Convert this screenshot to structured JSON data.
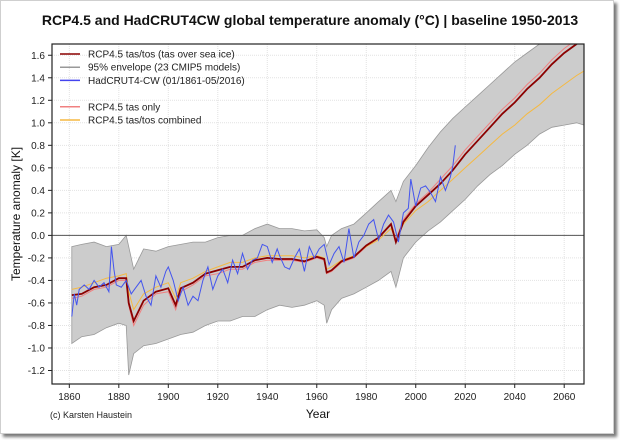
{
  "chart_data": {
    "type": "line",
    "title": "RCP4.5 and HadCRUT4CW global temperature anomaly (°C) | baseline 1950-2013",
    "xlabel": "Year",
    "ylabel": "Temperature anomaly [K]",
    "credit": "(c) Karsten Haustein",
    "xlim": [
      1853,
      2068
    ],
    "ylim": [
      -1.32,
      1.7
    ],
    "xticks": [
      1860,
      1880,
      1900,
      1920,
      1940,
      1960,
      1980,
      2000,
      2020,
      2040,
      2060
    ],
    "yticks": [
      -1.2,
      -1.0,
      -0.8,
      -0.6,
      -0.4,
      -0.2,
      0.0,
      0.2,
      0.4,
      0.6,
      0.8,
      1.0,
      1.2,
      1.4,
      1.6
    ],
    "ytick_labels": [
      "-1.2",
      "-1.0",
      "-0.8",
      "-0.6",
      "-0.4",
      "-0.2",
      "0.0",
      "0.2",
      "0.4",
      "0.6",
      "0.8",
      "1.0",
      "1.2",
      "1.4",
      "1.6"
    ],
    "grid": true,
    "zero_line": 0.0,
    "legend_position": "top-left",
    "legend": [
      {
        "label": "RCP4.5 tas/tos (tas over sea ice)",
        "color": "#8b0000"
      },
      {
        "label": "95% envelope (23 CMIP5 models)",
        "color": "#999999"
      },
      {
        "label": "HadCRUT4-CW (01/1861-05/2016)",
        "color": "#4444ee"
      },
      {
        "label": "",
        "color": ""
      },
      {
        "label": "RCP4.5 tas only",
        "color": "#f08080"
      },
      {
        "label": "RCP4.5 tas/tos combined",
        "color": "#f5b942"
      }
    ],
    "envelope": {
      "name": "95% envelope (23 CMIP5 models)",
      "color": "#cccccc",
      "x": [
        1861,
        1865,
        1870,
        1875,
        1880,
        1883,
        1884,
        1886,
        1890,
        1895,
        1900,
        1905,
        1910,
        1915,
        1920,
        1925,
        1930,
        1935,
        1940,
        1945,
        1950,
        1955,
        1960,
        1963,
        1964,
        1966,
        1970,
        1975,
        1980,
        1985,
        1990,
        1992,
        1995,
        2000,
        2005,
        2010,
        2015,
        2020,
        2025,
        2030,
        2035,
        2040,
        2045,
        2050,
        2055,
        2060,
        2065,
        2068
      ],
      "upper": [
        -0.1,
        -0.08,
        -0.06,
        -0.1,
        -0.08,
        0.0,
        -0.1,
        -0.3,
        -0.12,
        -0.14,
        -0.1,
        -0.08,
        -0.06,
        -0.06,
        -0.02,
        0.0,
        0.0,
        0.06,
        0.1,
        0.06,
        0.06,
        0.04,
        0.05,
        -0.02,
        -0.1,
        0.0,
        0.06,
        0.1,
        0.2,
        0.3,
        0.4,
        0.3,
        0.48,
        0.62,
        0.78,
        0.92,
        1.04,
        1.14,
        1.24,
        1.34,
        1.44,
        1.54,
        1.62,
        1.7,
        1.72,
        1.74,
        1.76,
        1.76
      ],
      "lower": [
        -0.96,
        -0.9,
        -0.88,
        -0.82,
        -0.78,
        -0.8,
        -1.24,
        -1.05,
        -0.98,
        -0.96,
        -0.92,
        -0.88,
        -0.86,
        -0.8,
        -0.76,
        -0.76,
        -0.72,
        -0.72,
        -0.66,
        -0.62,
        -0.64,
        -0.62,
        -0.58,
        -0.62,
        -0.78,
        -0.66,
        -0.56,
        -0.52,
        -0.46,
        -0.4,
        -0.32,
        -0.46,
        -0.2,
        -0.06,
        0.04,
        0.12,
        0.22,
        0.32,
        0.44,
        0.54,
        0.62,
        0.72,
        0.8,
        0.9,
        0.96,
        0.98,
        1.0,
        0.98
      ]
    },
    "series": [
      {
        "name": "RCP4.5 tas only",
        "color": "#f08080",
        "x": [
          1861,
          1865,
          1870,
          1875,
          1880,
          1883,
          1884,
          1886,
          1890,
          1895,
          1900,
          1903,
          1905,
          1910,
          1915,
          1920,
          1925,
          1930,
          1935,
          1940,
          1945,
          1950,
          1955,
          1960,
          1963,
          1964,
          1966,
          1970,
          1975,
          1980,
          1985,
          1990,
          1992,
          1995,
          2000,
          2005,
          2010,
          2015,
          2020,
          2025,
          2030,
          2035,
          2040,
          2045,
          2050,
          2055,
          2060,
          2065,
          2068
        ],
        "y": [
          -0.56,
          -0.54,
          -0.48,
          -0.46,
          -0.4,
          -0.4,
          -0.62,
          -0.8,
          -0.62,
          -0.52,
          -0.5,
          -0.66,
          -0.5,
          -0.44,
          -0.36,
          -0.34,
          -0.3,
          -0.3,
          -0.24,
          -0.22,
          -0.22,
          -0.22,
          -0.24,
          -0.2,
          -0.22,
          -0.34,
          -0.32,
          -0.24,
          -0.2,
          -0.1,
          -0.02,
          0.1,
          -0.04,
          0.14,
          0.28,
          0.38,
          0.5,
          0.62,
          0.76,
          0.88,
          1.0,
          1.12,
          1.22,
          1.34,
          1.44,
          1.56,
          1.66,
          1.74,
          1.78
        ]
      },
      {
        "name": "RCP4.5 tas/tos combined",
        "color": "#f5b942",
        "x": [
          1861,
          1865,
          1870,
          1875,
          1880,
          1883,
          1884,
          1886,
          1890,
          1895,
          1900,
          1903,
          1905,
          1910,
          1915,
          1920,
          1925,
          1930,
          1935,
          1940,
          1945,
          1950,
          1955,
          1960,
          1963,
          1964,
          1966,
          1970,
          1975,
          1980,
          1985,
          1990,
          1992,
          1995,
          2000,
          2005,
          2010,
          2015,
          2020,
          2025,
          2030,
          2035,
          2040,
          2045,
          2050,
          2055,
          2060,
          2065,
          2068
        ],
        "y": [
          -0.48,
          -0.46,
          -0.42,
          -0.38,
          -0.36,
          -0.34,
          -0.5,
          -0.66,
          -0.52,
          -0.46,
          -0.42,
          -0.56,
          -0.42,
          -0.38,
          -0.32,
          -0.28,
          -0.24,
          -0.24,
          -0.2,
          -0.18,
          -0.18,
          -0.18,
          -0.2,
          -0.18,
          -0.2,
          -0.3,
          -0.28,
          -0.22,
          -0.18,
          -0.1,
          -0.04,
          0.06,
          -0.04,
          0.1,
          0.22,
          0.3,
          0.4,
          0.5,
          0.6,
          0.7,
          0.8,
          0.9,
          0.98,
          1.08,
          1.16,
          1.26,
          1.34,
          1.42,
          1.46
        ]
      },
      {
        "name": "RCP4.5 tas/tos (tas over sea ice)",
        "color": "#8b0000",
        "x": [
          1861,
          1865,
          1870,
          1875,
          1880,
          1883,
          1884,
          1886,
          1890,
          1895,
          1900,
          1903,
          1905,
          1910,
          1915,
          1920,
          1925,
          1930,
          1935,
          1940,
          1945,
          1950,
          1955,
          1960,
          1963,
          1964,
          1966,
          1970,
          1975,
          1980,
          1985,
          1990,
          1992,
          1995,
          2000,
          2005,
          2010,
          2015,
          2020,
          2025,
          2030,
          2035,
          2040,
          2045,
          2050,
          2055,
          2060,
          2065,
          2068
        ],
        "y": [
          -0.53,
          -0.52,
          -0.46,
          -0.44,
          -0.38,
          -0.38,
          -0.6,
          -0.76,
          -0.58,
          -0.5,
          -0.47,
          -0.62,
          -0.47,
          -0.42,
          -0.34,
          -0.31,
          -0.28,
          -0.28,
          -0.22,
          -0.2,
          -0.21,
          -0.21,
          -0.23,
          -0.19,
          -0.21,
          -0.33,
          -0.31,
          -0.23,
          -0.19,
          -0.09,
          -0.02,
          0.1,
          -0.06,
          0.12,
          0.26,
          0.36,
          0.46,
          0.58,
          0.72,
          0.84,
          0.96,
          1.08,
          1.18,
          1.3,
          1.4,
          1.52,
          1.62,
          1.7,
          1.74
        ]
      },
      {
        "name": "HadCRUT4-CW (01/1861-05/2016)",
        "color": "#4455ee",
        "x": [
          1861,
          1862,
          1863,
          1864,
          1866,
          1868,
          1870,
          1872,
          1874,
          1876,
          1877,
          1878,
          1879,
          1881,
          1883,
          1885,
          1887,
          1889,
          1891,
          1893,
          1895,
          1897,
          1899,
          1900,
          1902,
          1904,
          1906,
          1908,
          1910,
          1912,
          1914,
          1916,
          1918,
          1920,
          1922,
          1924,
          1926,
          1928,
          1930,
          1932,
          1934,
          1936,
          1938,
          1940,
          1942,
          1944,
          1945,
          1947,
          1949,
          1951,
          1953,
          1955,
          1957,
          1959,
          1961,
          1963,
          1965,
          1967,
          1969,
          1971,
          1973,
          1975,
          1977,
          1979,
          1981,
          1983,
          1985,
          1987,
          1989,
          1991,
          1993,
          1995,
          1997,
          1998,
          2000,
          2002,
          2004,
          2006,
          2008,
          2010,
          2012,
          2014,
          2015,
          2016
        ],
        "y": [
          -0.72,
          -0.52,
          -0.62,
          -0.48,
          -0.44,
          -0.48,
          -0.4,
          -0.46,
          -0.42,
          -0.5,
          -0.1,
          -0.3,
          -0.44,
          -0.46,
          -0.4,
          -0.52,
          -0.46,
          -0.4,
          -0.54,
          -0.62,
          -0.36,
          -0.46,
          -0.32,
          -0.28,
          -0.4,
          -0.58,
          -0.46,
          -0.62,
          -0.54,
          -0.58,
          -0.4,
          -0.28,
          -0.48,
          -0.36,
          -0.3,
          -0.42,
          -0.22,
          -0.34,
          -0.16,
          -0.3,
          -0.22,
          -0.2,
          -0.08,
          -0.1,
          -0.24,
          -0.12,
          -0.18,
          -0.28,
          -0.3,
          -0.2,
          -0.12,
          -0.32,
          -0.1,
          -0.2,
          -0.12,
          -0.08,
          -0.26,
          -0.16,
          -0.1,
          -0.24,
          0.06,
          -0.2,
          -0.06,
          0.0,
          0.1,
          0.14,
          -0.04,
          0.1,
          0.18,
          0.12,
          -0.06,
          0.2,
          0.24,
          0.5,
          0.26,
          0.42,
          0.44,
          0.38,
          0.3,
          0.52,
          0.4,
          0.52,
          0.62,
          0.8
        ]
      }
    ]
  }
}
